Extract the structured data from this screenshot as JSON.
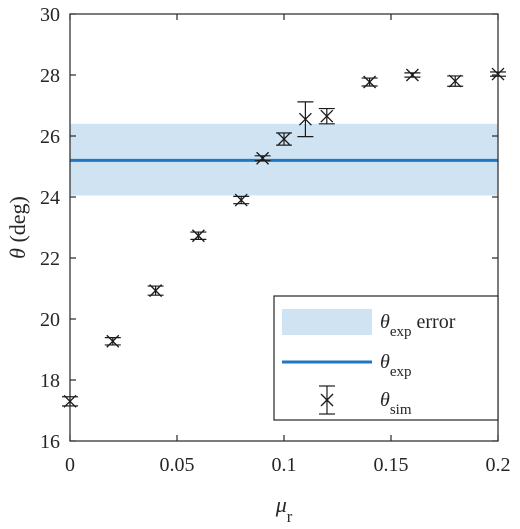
{
  "chart_data": {
    "type": "scatter",
    "xlim": [
      0,
      0.2
    ],
    "ylim": [
      16,
      30
    ],
    "xticks": [
      0,
      0.05,
      0.1,
      0.15,
      0.2
    ],
    "xtick_labels": [
      "0",
      "0.05",
      "0.1",
      "0.15",
      "0.2"
    ],
    "yticks": [
      16,
      18,
      20,
      22,
      24,
      26,
      28,
      30
    ],
    "ytick_labels": [
      "16",
      "18",
      "20",
      "22",
      "24",
      "26",
      "28",
      "30"
    ],
    "xlabel": {
      "symbol": "μ",
      "sub": "r"
    },
    "ylabel": {
      "symbol": "θ",
      "rest": " (deg)"
    },
    "grid": false,
    "box": true,
    "legend_position": "bottom-right",
    "exp": {
      "value": 25.2,
      "band": [
        24.05,
        26.4
      ],
      "line_color": "#1f77c4",
      "band_color": "#cfe3f2"
    },
    "sim": {
      "marker": "x",
      "color": "#1a1a1a",
      "points": [
        {
          "x": 0.0,
          "y": 17.3,
          "err": 0.15
        },
        {
          "x": 0.02,
          "y": 19.27,
          "err": 0.12
        },
        {
          "x": 0.04,
          "y": 20.93,
          "err": 0.15
        },
        {
          "x": 0.06,
          "y": 22.73,
          "err": 0.12
        },
        {
          "x": 0.08,
          "y": 23.9,
          "err": 0.12
        },
        {
          "x": 0.09,
          "y": 25.27,
          "err": 0.08
        },
        {
          "x": 0.1,
          "y": 25.9,
          "err": 0.2
        },
        {
          "x": 0.11,
          "y": 26.55,
          "err": 0.57
        },
        {
          "x": 0.12,
          "y": 26.65,
          "err": 0.25
        },
        {
          "x": 0.14,
          "y": 27.77,
          "err": 0.13
        },
        {
          "x": 0.16,
          "y": 28.0,
          "err": 0.07
        },
        {
          "x": 0.18,
          "y": 27.8,
          "err": 0.17
        },
        {
          "x": 0.2,
          "y": 28.03,
          "err": 0.07
        }
      ]
    },
    "legend": [
      {
        "kind": "band",
        "symbol": "θ",
        "sub": "exp",
        "suffix": " error"
      },
      {
        "kind": "line",
        "symbol": "θ",
        "sub": "exp",
        "suffix": ""
      },
      {
        "kind": "errorbar",
        "symbol": "θ",
        "sub": "sim",
        "suffix": ""
      }
    ]
  }
}
